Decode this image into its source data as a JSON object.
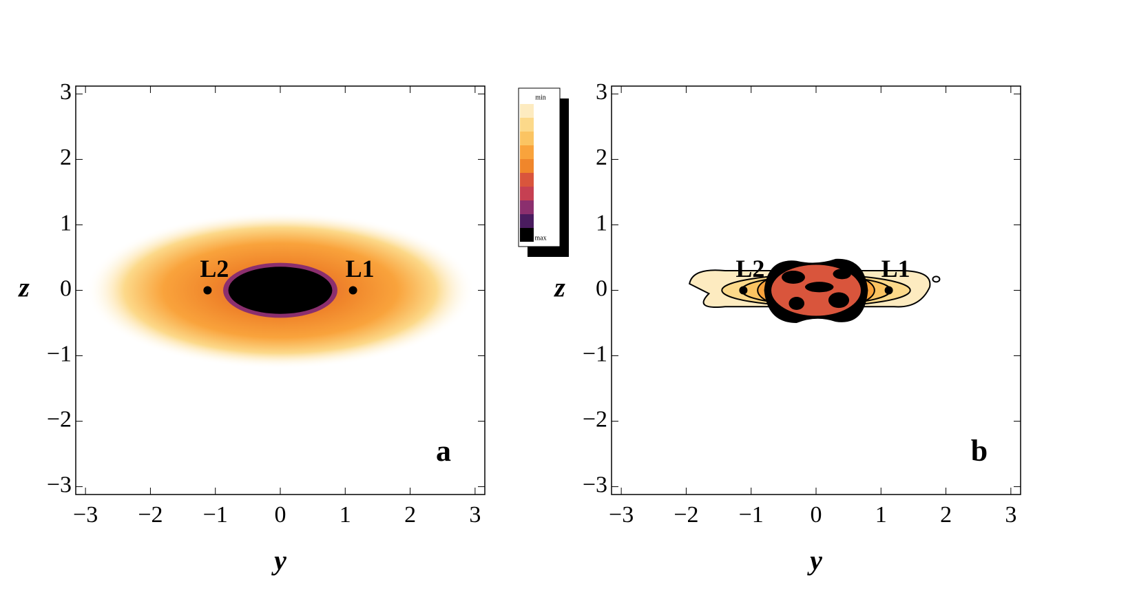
{
  "chart_data": [
    {
      "type": "density",
      "panel_label": "a",
      "x_label": "y",
      "y_label": "z",
      "xlim": [
        -3.15,
        3.15
      ],
      "ylim": [
        -3.12,
        3.12
      ],
      "xticks": [
        {
          "value": -3,
          "label": "−3"
        },
        {
          "value": -2,
          "label": "−2"
        },
        {
          "value": -1,
          "label": "−1"
        },
        0,
        1,
        2,
        3
      ],
      "yticks": [
        {
          "value": -3,
          "label": "−3"
        },
        {
          "value": -2,
          "label": "−2"
        },
        {
          "value": -1,
          "label": "−1"
        },
        0,
        1,
        2,
        3
      ],
      "points": {
        "labels": [
          "L2",
          "L1"
        ],
        "x": [
          -1.12,
          1.12
        ],
        "y": [
          0,
          0
        ]
      }
    },
    {
      "type": "contour",
      "panel_label": "b",
      "x_label": "y",
      "y_label": "z",
      "xlim": [
        -3.15,
        3.15
      ],
      "ylim": [
        -3.12,
        3.12
      ],
      "xticks": [
        {
          "value": -3,
          "label": "−3"
        },
        {
          "value": -2,
          "label": "−2"
        },
        {
          "value": -1,
          "label": "−1"
        },
        0,
        1,
        2,
        3
      ],
      "yticks": [
        {
          "value": -3,
          "label": "−3"
        },
        {
          "value": -2,
          "label": "−2"
        },
        {
          "value": -1,
          "label": "−1"
        },
        0,
        1,
        2,
        3
      ],
      "points": {
        "labels": [
          "L2",
          "L1"
        ],
        "x": [
          -1.12,
          1.12
        ],
        "y": [
          0,
          0
        ]
      }
    }
  ],
  "colorbar": {
    "labels": [
      "min",
      "max"
    ],
    "colors": [
      "#fdebc0",
      "#fcd98a",
      "#fbc462",
      "#f9a33c",
      "#f0862b",
      "#d9553c",
      "#c64052",
      "#8b2f6e",
      "#4a1c5f",
      "#000000"
    ]
  }
}
